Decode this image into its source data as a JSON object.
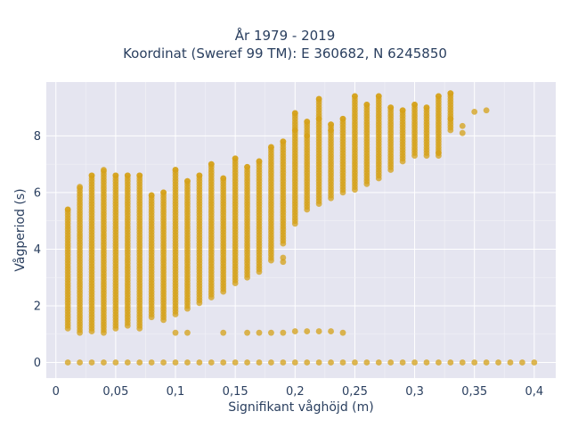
{
  "chart_data": {
    "type": "scatter",
    "title_lines": [
      "År 1979 - 2019",
      "Koordinat (Sweref 99 TM): E 360682, N 6245850"
    ],
    "xlabel": "Signifikant våghöjd (m)",
    "ylabel": "Vågperiod (s)",
    "xlim": [
      -0.008,
      0.418
    ],
    "ylim": [
      -0.55,
      9.9
    ],
    "x_ticks": [
      0,
      0.05,
      0.1,
      0.15,
      0.2,
      0.25,
      0.3,
      0.35,
      0.4
    ],
    "x_tick_labels": [
      "0",
      "0,05",
      "0,1",
      "0,15",
      "0,2",
      "0,25",
      "0,3",
      "0,35",
      "0,4"
    ],
    "y_ticks": [
      0,
      2,
      4,
      6,
      8
    ],
    "y_tick_labels": [
      "0",
      "2",
      "4",
      "6",
      "8"
    ],
    "grid": true,
    "legend": "none",
    "marker_color": "#d4a017",
    "plot_bg": "#e5e5f0",
    "columns": [
      {
        "x": 0.01,
        "ymin": 1.2,
        "ymax": 5.4
      },
      {
        "x": 0.02,
        "ymin": 1.05,
        "ymax": 6.2
      },
      {
        "x": 0.03,
        "ymin": 1.1,
        "ymax": 6.6
      },
      {
        "x": 0.04,
        "ymin": 1.05,
        "ymax": 6.8
      },
      {
        "x": 0.05,
        "ymin": 1.2,
        "ymax": 6.6
      },
      {
        "x": 0.06,
        "ymin": 1.3,
        "ymax": 6.6
      },
      {
        "x": 0.07,
        "ymin": 1.2,
        "ymax": 6.6
      },
      {
        "x": 0.08,
        "ymin": 1.6,
        "ymax": 5.9
      },
      {
        "x": 0.09,
        "ymin": 1.5,
        "ymax": 6.0
      },
      {
        "x": 0.1,
        "ymin": 1.7,
        "ymax": 6.8
      },
      {
        "x": 0.11,
        "ymin": 1.9,
        "ymax": 6.4
      },
      {
        "x": 0.12,
        "ymin": 2.1,
        "ymax": 6.6
      },
      {
        "x": 0.13,
        "ymin": 2.3,
        "ymax": 7.0
      },
      {
        "x": 0.14,
        "ymin": 2.5,
        "ymax": 6.5
      },
      {
        "x": 0.15,
        "ymin": 2.8,
        "ymax": 7.2
      },
      {
        "x": 0.16,
        "ymin": 3.0,
        "ymax": 6.9
      },
      {
        "x": 0.17,
        "ymin": 3.2,
        "ymax": 7.1
      },
      {
        "x": 0.18,
        "ymin": 3.6,
        "ymax": 7.6
      },
      {
        "x": 0.19,
        "ymin": 4.2,
        "ymax": 7.8
      },
      {
        "x": 0.2,
        "ymin": 4.9,
        "ymax": 8.8
      },
      {
        "x": 0.21,
        "ymin": 5.4,
        "ymax": 8.5
      },
      {
        "x": 0.22,
        "ymin": 5.6,
        "ymax": 9.3
      },
      {
        "x": 0.23,
        "ymin": 5.8,
        "ymax": 8.4
      },
      {
        "x": 0.24,
        "ymin": 6.0,
        "ymax": 8.6
      },
      {
        "x": 0.25,
        "ymin": 6.1,
        "ymax": 9.4
      },
      {
        "x": 0.26,
        "ymin": 6.3,
        "ymax": 9.1
      },
      {
        "x": 0.27,
        "ymin": 6.5,
        "ymax": 9.4
      },
      {
        "x": 0.28,
        "ymin": 6.8,
        "ymax": 9.0
      },
      {
        "x": 0.29,
        "ymin": 7.1,
        "ymax": 8.9
      },
      {
        "x": 0.3,
        "ymin": 7.3,
        "ymax": 9.1
      },
      {
        "x": 0.31,
        "ymin": 7.3,
        "ymax": 9.0
      },
      {
        "x": 0.32,
        "ymin": 7.3,
        "ymax": 9.4
      },
      {
        "x": 0.33,
        "ymin": 8.2,
        "ymax": 9.5
      }
    ],
    "extra_points": [
      {
        "x": 0.35,
        "y": 8.85
      },
      {
        "x": 0.36,
        "y": 8.9
      },
      {
        "x": 0.34,
        "y": 8.35
      },
      {
        "x": 0.34,
        "y": 8.1
      },
      {
        "x": 0.33,
        "y": 8.6
      },
      {
        "x": 0.32,
        "y": 7.4
      },
      {
        "x": 0.1,
        "y": 1.05
      },
      {
        "x": 0.11,
        "y": 1.05
      },
      {
        "x": 0.14,
        "y": 1.05
      },
      {
        "x": 0.16,
        "y": 1.05
      },
      {
        "x": 0.17,
        "y": 1.05
      },
      {
        "x": 0.18,
        "y": 1.05
      },
      {
        "x": 0.19,
        "y": 1.05
      },
      {
        "x": 0.2,
        "y": 1.1
      },
      {
        "x": 0.21,
        "y": 1.1
      },
      {
        "x": 0.22,
        "y": 1.1
      },
      {
        "x": 0.23,
        "y": 1.1
      },
      {
        "x": 0.24,
        "y": 1.05
      },
      {
        "x": 0.19,
        "y": 3.7
      },
      {
        "x": 0.19,
        "y": 3.55
      },
      {
        "x": 0.22,
        "y": 8.6
      },
      {
        "x": 0.23,
        "y": 8.2
      },
      {
        "x": 0.2,
        "y": 8.2
      },
      {
        "x": 0.21,
        "y": 8.0
      }
    ],
    "zero_row": {
      "y": 0,
      "x": [
        0.01,
        0.02,
        0.03,
        0.04,
        0.05,
        0.06,
        0.07,
        0.08,
        0.09,
        0.1,
        0.11,
        0.12,
        0.13,
        0.14,
        0.15,
        0.16,
        0.17,
        0.18,
        0.19,
        0.2,
        0.21,
        0.22,
        0.23,
        0.24,
        0.25,
        0.26,
        0.27,
        0.28,
        0.29,
        0.3,
        0.31,
        0.32,
        0.33,
        0.34,
        0.35,
        0.36,
        0.37,
        0.38,
        0.39,
        0.4
      ]
    }
  }
}
